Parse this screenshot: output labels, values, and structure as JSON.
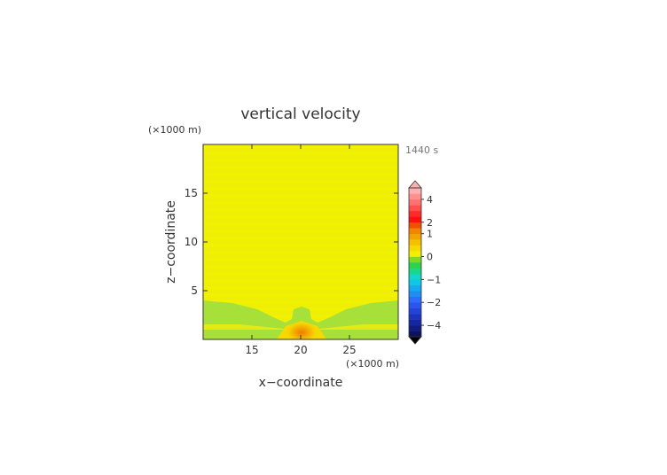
{
  "chart_data": {
    "type": "heatmap",
    "title": "vertical velocity",
    "time_label": "1440 s",
    "xlabel": "x−coordinate",
    "ylabel": "z−coordinate",
    "x_unit": "(×1000 m)",
    "y_unit": "(×1000 m)",
    "xlim": [
      10,
      30
    ],
    "ylim": [
      0,
      20
    ],
    "x_ticks": [
      15,
      20,
      25
    ],
    "y_ticks": [
      5,
      10,
      15
    ],
    "colorbar": {
      "levels": [
        -5,
        -4.5,
        -4,
        -3.5,
        -3,
        -2.5,
        -2,
        -1.75,
        -1.5,
        -1.25,
        -1,
        -0.75,
        -0.5,
        -0.25,
        0,
        0.25,
        0.5,
        0.75,
        1,
        1.5,
        2,
        2.5,
        3,
        3.5,
        4,
        4.5,
        5
      ],
      "colors": [
        "#0c1260",
        "#111c80",
        "#1626a0",
        "#1c33be",
        "#2244d8",
        "#2a56ee",
        "#2f6bff",
        "#1e8ef0",
        "#16a9f0",
        "#10c6e8",
        "#12d6c8",
        "#18d88a",
        "#30d24a",
        "#7bd92a",
        "#f0f000",
        "#f5da00",
        "#f5c000",
        "#f2a300",
        "#f08500",
        "#f05000",
        "#ff1010",
        "#ff2a2a",
        "#ff5050",
        "#ff7070",
        "#ff9090",
        "#ffb0b0"
      ],
      "tick_labels": [
        {
          "value": 4,
          "text": "4"
        },
        {
          "value": 2,
          "text": "2"
        },
        {
          "value": 1,
          "text": "1"
        },
        {
          "value": 0,
          "text": "0"
        },
        {
          "value": -1,
          "text": "−1"
        },
        {
          "value": -2,
          "text": "−2"
        },
        {
          "value": -4,
          "text": "−4"
        }
      ]
    },
    "field_summary": {
      "background_value": 0.1,
      "positive_core": {
        "x": 20,
        "z": 0.8,
        "max_value": 1.2
      },
      "weak_negative_band_z": [
        0.8,
        4.0
      ]
    }
  }
}
